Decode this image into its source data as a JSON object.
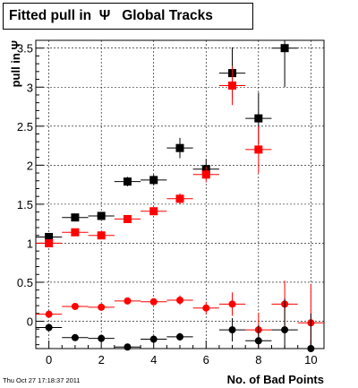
{
  "chart_data": {
    "type": "scatter",
    "title": "Fitted pull in  Ψ   Global Tracks",
    "xlabel": "No. of Bad Points",
    "ylabel": "pull in Ψ",
    "xlim": [
      -0.5,
      10.5
    ],
    "ylim": [
      -0.35,
      3.6
    ],
    "x_ticks": [
      0,
      2,
      4,
      6,
      8,
      10
    ],
    "y_ticks": [
      0,
      0.5,
      1,
      1.5,
      2,
      2.5,
      3,
      3.5
    ],
    "y_tick_labels": [
      "0",
      "0.5",
      "1",
      "1.5",
      "2",
      "2.5",
      "3",
      "3.5"
    ],
    "grid": true,
    "series": [
      {
        "marker": "square",
        "color": "#000000",
        "x": [
          0,
          1,
          2,
          3,
          4,
          5,
          6,
          7,
          8,
          9
        ],
        "y": [
          1.08,
          1.33,
          1.35,
          1.79,
          1.81,
          2.22,
          1.95,
          3.18,
          2.6,
          3.5
        ],
        "err": [
          0.03,
          0.04,
          0.04,
          0.06,
          0.07,
          0.13,
          0.13,
          0.33,
          0.33,
          0.5
        ]
      },
      {
        "marker": "square",
        "color": "#ff0000",
        "x": [
          0,
          1,
          2,
          3,
          4,
          5,
          6,
          7,
          8
        ],
        "y": [
          1.0,
          1.14,
          1.1,
          1.31,
          1.41,
          1.57,
          1.88,
          3.02,
          2.2
        ],
        "err": [
          0.03,
          0.03,
          0.03,
          0.04,
          0.05,
          0.07,
          0.1,
          0.25,
          0.3
        ]
      },
      {
        "marker": "circle",
        "color": "#ff0000",
        "x": [
          0,
          1,
          2,
          3,
          4,
          5,
          6,
          7,
          8,
          9,
          10
        ],
        "y": [
          0.09,
          0.19,
          0.18,
          0.26,
          0.25,
          0.27,
          0.17,
          0.22,
          -0.11,
          0.22,
          -0.02
        ],
        "err": [
          0.02,
          0.02,
          0.02,
          0.03,
          0.04,
          0.06,
          0.08,
          0.15,
          0.22,
          0.3,
          0.5
        ]
      },
      {
        "marker": "circle",
        "color": "#000000",
        "x": [
          0,
          1,
          2,
          3,
          4,
          5,
          7,
          8,
          9,
          10
        ],
        "y": [
          -0.08,
          -0.21,
          -0.22,
          -0.33,
          -0.23,
          -0.2,
          -0.11,
          -0.25,
          -0.11,
          -0.35
        ],
        "err": [
          0.02,
          0.02,
          0.02,
          0.03,
          0.04,
          0.05,
          0.15,
          0.2,
          0.4,
          0.45
        ]
      }
    ]
  },
  "footer": {
    "timestamp": "Thu Oct 27 17:18:37 2011"
  }
}
